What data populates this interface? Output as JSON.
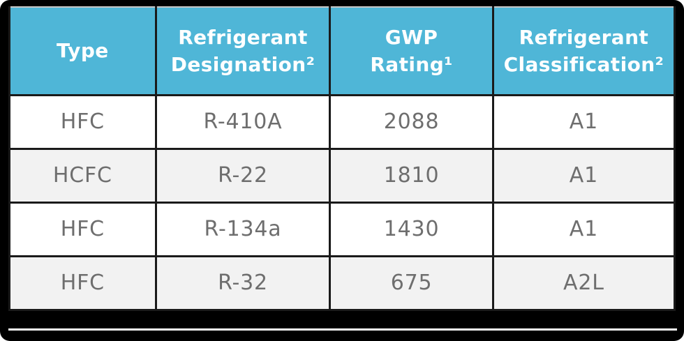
{
  "chart_data": {
    "type": "table",
    "columns": [
      {
        "label": "Type",
        "lines": [
          "Type"
        ]
      },
      {
        "label": "Refrigerant Designation²",
        "lines": [
          "Refrigerant",
          "Designation²"
        ]
      },
      {
        "label": "GWP Rating¹",
        "lines": [
          "GWP",
          "Rating¹"
        ]
      },
      {
        "label": "Refrigerant Classification²",
        "lines": [
          "Refrigerant",
          "Classification²"
        ]
      }
    ],
    "rows": [
      [
        "HFC",
        "R-410A",
        "2088",
        "A1"
      ],
      [
        "HCFC",
        "R-22",
        "1810",
        "A1"
      ],
      [
        "HFC",
        "R-134a",
        "1430",
        "A1"
      ],
      [
        "HFC",
        "R-32",
        "675",
        "A2L"
      ]
    ]
  },
  "colors": {
    "header_bg": "#4FB6D7",
    "header_text": "#FFFFFF",
    "row_bg": "#FFFFFF",
    "row_alt_bg": "#F2F2F2",
    "cell_text": "#6E6E6E",
    "grid_line": "#1A1A1A",
    "frame_bg": "#000000",
    "top_edge": "#C8C8C8",
    "bottom_edge": "#FFFFFF"
  }
}
